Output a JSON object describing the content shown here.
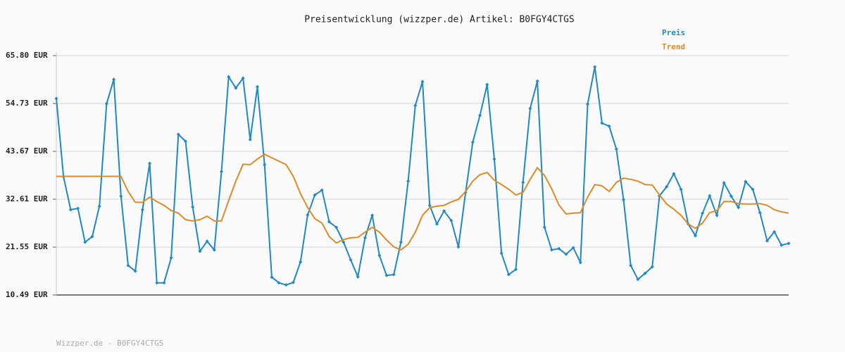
{
  "chart_data": {
    "type": "line",
    "title": "Preisentwicklung (wizzper.de) Artikel: B0FGY4CTGS",
    "footer": "Wizzper.de - B0FGY4CTGS",
    "legend": "top-right",
    "grid": true,
    "ylim": [
      10.49,
      65.8
    ],
    "yticks": [
      {
        "value": 10.49,
        "label": "10.49 EUR"
      },
      {
        "value": 21.55,
        "label": "21.55 EUR"
      },
      {
        "value": 32.61,
        "label": "32.61 EUR"
      },
      {
        "value": 43.67,
        "label": "43.67 EUR"
      },
      {
        "value": 54.73,
        "label": "54.73 EUR"
      },
      {
        "value": 65.8,
        "label": "65.80 EUR"
      }
    ],
    "series": [
      {
        "name": "Preis",
        "color": "#1f88c5",
        "markers": true,
        "values": [
          55.9,
          37.8,
          30.2,
          30.5,
          22.7,
          24.0,
          31.0,
          54.7,
          60.3,
          33.3,
          17.3,
          16.0,
          30.2,
          40.9,
          13.3,
          13.3,
          19.1,
          47.6,
          46.0,
          30.8,
          20.6,
          22.9,
          20.9,
          39.0,
          60.9,
          58.3,
          60.6,
          46.4,
          58.6,
          40.6,
          14.6,
          13.3,
          12.8,
          13.4,
          18.1,
          29.0,
          33.6,
          34.7,
          27.4,
          26.1,
          22.7,
          18.6,
          14.7,
          23.7,
          28.9,
          19.6,
          15.0,
          15.2,
          22.7,
          36.8,
          54.3,
          59.8,
          31.2,
          26.9,
          29.9,
          27.7,
          21.6,
          34.2,
          45.8,
          52.0,
          59.1,
          41.9,
          20.1,
          15.2,
          16.4,
          36.5,
          53.6,
          59.9,
          26.1,
          20.9,
          21.2,
          19.9,
          21.4,
          18.0,
          54.6,
          63.2,
          50.2,
          49.5,
          44.2,
          32.5,
          17.3,
          14.1,
          15.5,
          17.0,
          33.4,
          35.5,
          38.5,
          34.9,
          26.9,
          24.2,
          29.4,
          33.4,
          28.9,
          36.4,
          33.3,
          30.7,
          36.7,
          34.9,
          29.5,
          23.0,
          25.1,
          22.0,
          22.4
        ]
      },
      {
        "name": "Trend",
        "color": "#e08a25",
        "markers": false,
        "values": [
          37.9,
          37.9,
          37.9,
          37.9,
          37.9,
          37.9,
          37.9,
          37.9,
          37.9,
          37.9,
          34.4,
          31.9,
          31.9,
          33.1,
          32.1,
          31.2,
          30.0,
          29.4,
          27.9,
          27.6,
          27.9,
          28.7,
          27.6,
          27.6,
          32.3,
          36.8,
          40.7,
          40.6,
          41.9,
          43.0,
          42.2,
          41.4,
          40.6,
          37.9,
          33.9,
          30.7,
          28.1,
          27.1,
          24.0,
          22.5,
          23.3,
          23.7,
          23.8,
          25.0,
          26.1,
          25.0,
          23.2,
          21.6,
          20.9,
          22.2,
          25.0,
          28.9,
          30.7,
          31.0,
          31.2,
          32.0,
          32.6,
          34.4,
          36.8,
          38.3,
          38.8,
          37.0,
          36.0,
          34.9,
          33.6,
          34.2,
          37.2,
          39.9,
          38.1,
          35.0,
          31.3,
          29.2,
          29.4,
          29.5,
          33.1,
          36.0,
          35.7,
          34.4,
          36.5,
          37.5,
          37.2,
          36.8,
          36.0,
          35.9,
          33.6,
          31.5,
          30.3,
          28.9,
          26.9,
          25.9,
          27.1,
          29.5,
          30.0,
          32.1,
          32.1,
          31.6,
          31.5,
          31.5,
          31.6,
          31.2,
          30.2,
          29.7,
          29.4
        ]
      }
    ]
  }
}
